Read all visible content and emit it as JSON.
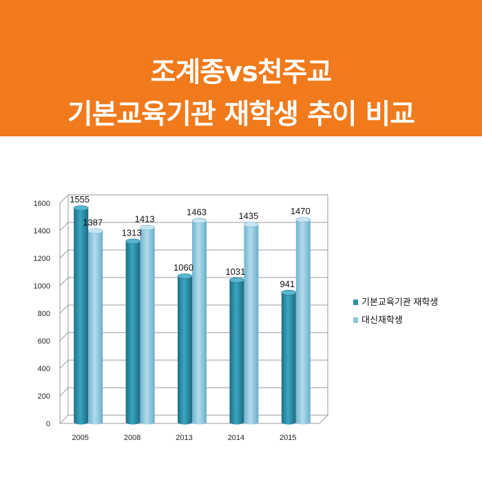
{
  "header": {
    "title_line1": "조계종vs천주교",
    "title_line2": "기본교육기관 재학생 추이 비교",
    "background_color": "#f07a1c"
  },
  "chart_data": {
    "type": "bar",
    "title": "",
    "xlabel": "",
    "ylabel": "",
    "categories": [
      "2005",
      "2008",
      "2013",
      "2014",
      "2015"
    ],
    "series": [
      {
        "name": "기본교육기관 재학생",
        "values": [
          1555,
          1313,
          1060,
          1031,
          941
        ],
        "color": "#2e8fa8"
      },
      {
        "name": "대신재학생",
        "values": [
          1387,
          1413,
          1463,
          1435,
          1470
        ],
        "color": "#8ac4de"
      }
    ],
    "y_ticks": [
      "0",
      "200",
      "400",
      "600",
      "800",
      "1000",
      "1200",
      "1400",
      "1600"
    ],
    "ylim": [
      0,
      1600
    ],
    "grid": true,
    "legend_position": "right",
    "data_labels": true
  }
}
